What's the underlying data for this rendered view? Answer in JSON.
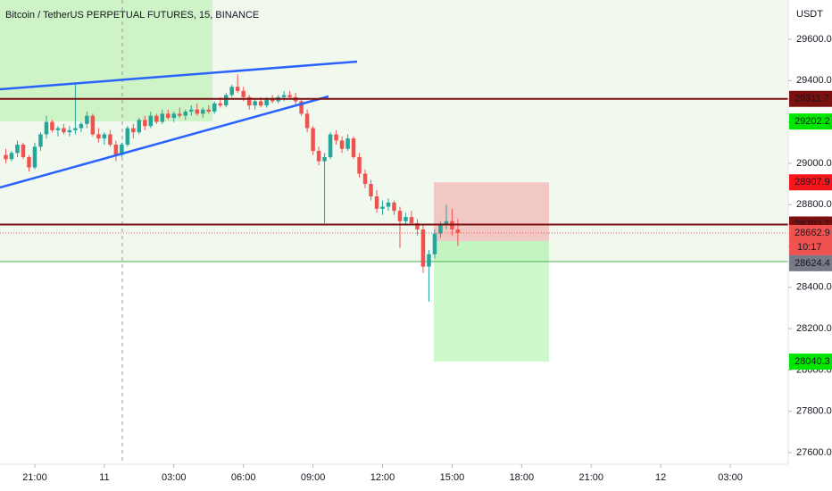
{
  "chart_data": {
    "type": "candlestick",
    "title": "Bitcoin / TetherUS PERPETUAL FUTURES, 15, BINANCE",
    "y_unit": "USDT",
    "up_color": "#26a69a",
    "down_color": "#ef5350",
    "ohlc": [
      [
        29040,
        29070,
        29000,
        29020
      ],
      [
        29020,
        29060,
        29010,
        29050
      ],
      [
        29050,
        29110,
        29030,
        29090
      ],
      [
        29090,
        29100,
        29020,
        29030
      ],
      [
        29030,
        29040,
        28960,
        28980
      ],
      [
        28980,
        29100,
        28970,
        29080
      ],
      [
        29080,
        29150,
        29060,
        29140
      ],
      [
        29140,
        29230,
        29120,
        29200
      ],
      [
        29200,
        29210,
        29150,
        29160
      ],
      [
        29160,
        29180,
        29130,
        29170
      ],
      [
        29170,
        29190,
        29140,
        29150
      ],
      [
        29150,
        29180,
        29130,
        29160
      ],
      [
        29160,
        29390,
        29140,
        29170
      ],
      [
        29170,
        29200,
        29150,
        29190
      ],
      [
        29190,
        29250,
        29170,
        29230
      ],
      [
        29230,
        29240,
        29130,
        29140
      ],
      [
        29140,
        29170,
        29100,
        29120
      ],
      [
        29120,
        29150,
        29090,
        29140
      ],
      [
        29140,
        29160,
        29080,
        29090
      ],
      [
        29090,
        29110,
        29010,
        29040
      ],
      [
        29040,
        29100,
        29030,
        29090
      ],
      [
        29090,
        29180,
        29080,
        29170
      ],
      [
        29170,
        29190,
        29120,
        29150
      ],
      [
        29150,
        29220,
        29140,
        29210
      ],
      [
        29210,
        29230,
        29160,
        29180
      ],
      [
        29180,
        29250,
        29170,
        29230
      ],
      [
        29230,
        29240,
        29190,
        29200
      ],
      [
        29200,
        29260,
        29190,
        29240
      ],
      [
        29240,
        29260,
        29210,
        29220
      ],
      [
        29220,
        29250,
        29200,
        29240
      ],
      [
        29240,
        29270,
        29220,
        29230
      ],
      [
        29230,
        29260,
        29210,
        29250
      ],
      [
        29250,
        29280,
        29230,
        29260
      ],
      [
        29260,
        29290,
        29230,
        29240
      ],
      [
        29240,
        29270,
        29220,
        29260
      ],
      [
        29260,
        29280,
        29240,
        29250
      ],
      [
        29250,
        29300,
        29240,
        29290
      ],
      [
        29290,
        29320,
        29270,
        29280
      ],
      [
        29280,
        29340,
        29270,
        29330
      ],
      [
        29330,
        29380,
        29320,
        29370
      ],
      [
        29370,
        29430,
        29340,
        29350
      ],
      [
        29350,
        29370,
        29300,
        29320
      ],
      [
        29320,
        29330,
        29260,
        29280
      ],
      [
        29280,
        29310,
        29260,
        29300
      ],
      [
        29300,
        29320,
        29270,
        29280
      ],
      [
        29280,
        29320,
        29270,
        29310
      ],
      [
        29310,
        29330,
        29290,
        29300
      ],
      [
        29300,
        29330,
        29290,
        29320
      ],
      [
        29320,
        29350,
        29300,
        29330
      ],
      [
        29330,
        29350,
        29310,
        29320
      ],
      [
        29320,
        29340,
        29280,
        29300
      ],
      [
        29300,
        29310,
        29230,
        29240
      ],
      [
        29240,
        29260,
        29150,
        29170
      ],
      [
        29170,
        29180,
        29040,
        29060
      ],
      [
        29060,
        29080,
        28990,
        29010
      ],
      [
        29010,
        29050,
        28710,
        29030
      ],
      [
        29030,
        29150,
        29020,
        29140
      ],
      [
        29140,
        29160,
        29090,
        29110
      ],
      [
        29110,
        29130,
        29050,
        29070
      ],
      [
        29070,
        29140,
        29060,
        29120
      ],
      [
        29120,
        29130,
        29020,
        29030
      ],
      [
        29030,
        29050,
        28930,
        28950
      ],
      [
        28950,
        28970,
        28880,
        28900
      ],
      [
        28900,
        28920,
        28820,
        28840
      ],
      [
        28840,
        28870,
        28760,
        28780
      ],
      [
        28780,
        28820,
        28750,
        28790
      ],
      [
        28790,
        28830,
        28770,
        28810
      ],
      [
        28810,
        28820,
        28750,
        28770
      ],
      [
        28770,
        28790,
        28590,
        28720
      ],
      [
        28720,
        28760,
        28700,
        28740
      ],
      [
        28740,
        28770,
        28700,
        28710
      ],
      [
        28710,
        28730,
        28650,
        28680
      ],
      [
        28680,
        28700,
        28470,
        28500
      ],
      [
        28500,
        28580,
        28330,
        28560
      ],
      [
        28560,
        28680,
        28540,
        28660
      ],
      [
        28660,
        28720,
        28640,
        28700
      ],
      [
        28700,
        28800,
        28680,
        28720
      ],
      [
        28720,
        28780,
        28650,
        28680
      ],
      [
        28680,
        28730,
        28600,
        28662.9
      ]
    ],
    "xlim": [
      -1,
      135
    ],
    "xticks": [
      {
        "value": 5,
        "label": "21:00"
      },
      {
        "value": 17,
        "label": "11"
      },
      {
        "value": 29,
        "label": "03:00"
      },
      {
        "value": 41,
        "label": "06:00"
      },
      {
        "value": 53,
        "label": "09:00"
      },
      {
        "value": 65,
        "label": "12:00"
      },
      {
        "value": 77,
        "label": "15:00"
      },
      {
        "value": 89,
        "label": "18:00"
      },
      {
        "value": 101,
        "label": "21:00"
      },
      {
        "value": 113,
        "label": "12"
      },
      {
        "value": 125,
        "label": "03:00"
      }
    ],
    "ylim": [
      27544,
      29790
    ],
    "yticks": [
      {
        "value": 27600,
        "label": "27600.0"
      },
      {
        "value": 27800,
        "label": "27800.0"
      },
      {
        "value": 28000,
        "label": "28000.0"
      },
      {
        "value": 28200,
        "label": "28200.0"
      },
      {
        "value": 28400,
        "label": "28400.0"
      },
      {
        "value": 28600,
        "label": "28600.0"
      },
      {
        "value": 28800,
        "label": "28800.0"
      },
      {
        "value": 29000,
        "label": "29000.0"
      },
      {
        "value": 29200,
        "label": "29200.0"
      },
      {
        "value": 29400,
        "label": "29400.0"
      },
      {
        "value": 29600,
        "label": "29600.0"
      }
    ],
    "horizontal_lines": [
      29311.7,
      28703.7
    ],
    "line_color": "#7b1010",
    "alert_level": 29202.2,
    "last_price": 28662.9,
    "countdown": "10:17",
    "position": {
      "stop": 28907.9,
      "entry": 28624.4,
      "target": 28040.3
    }
  }
}
